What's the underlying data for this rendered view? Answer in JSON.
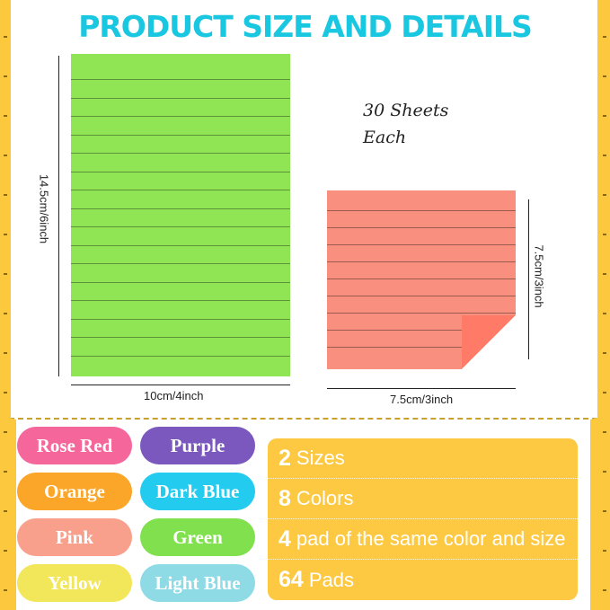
{
  "title": "PRODUCT SIZE AND DETAILS",
  "large_pad": {
    "height_label": "14.5cm/6inch",
    "width_label": "10cm/4inch",
    "color": "#8fe553"
  },
  "small_pad": {
    "height_label": "7.5cm/3inch",
    "width_label": "7.5cm/3inch",
    "color": "#f9907f"
  },
  "sheets_note": {
    "line1": "30 Sheets",
    "line2": "Each"
  },
  "colors": [
    {
      "label": "Rose Red",
      "hex": "#f5679a"
    },
    {
      "label": "Purple",
      "hex": "#7a58be"
    },
    {
      "label": "Orange",
      "hex": "#fba628"
    },
    {
      "label": "Dark Blue",
      "hex": "#23cbef"
    },
    {
      "label": "Pink",
      "hex": "#f9a08d"
    },
    {
      "label": "Green",
      "hex": "#80e04e"
    },
    {
      "label": "Yellow",
      "hex": "#f2e65a"
    },
    {
      "label": "Light Blue",
      "hex": "#8edbe6"
    }
  ],
  "details": [
    {
      "num": "2",
      "text": "Sizes"
    },
    {
      "num": "8",
      "text": "Colors"
    },
    {
      "num": "4",
      "text": "pad of the same color and size"
    },
    {
      "num": "64",
      "text": "Pads"
    }
  ]
}
